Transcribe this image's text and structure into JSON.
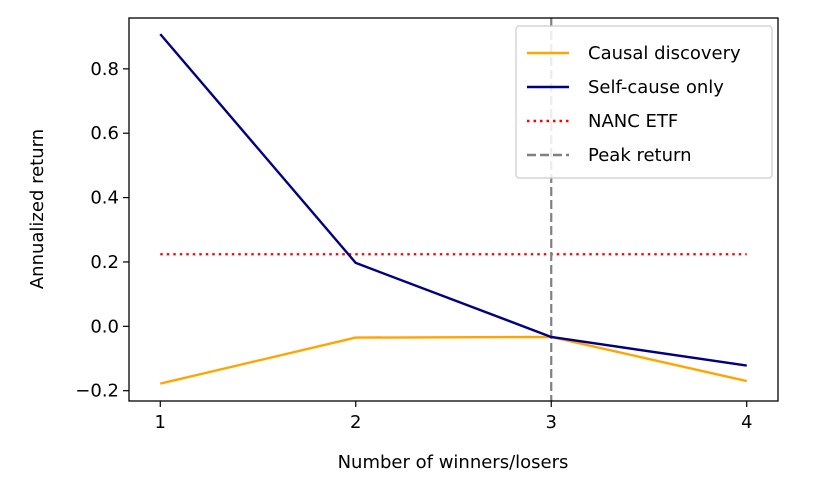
{
  "chart_data": {
    "type": "line",
    "title": "",
    "xlabel": "Number of winners/losers",
    "ylabel": "Annualized return",
    "x": [
      1,
      2,
      3,
      4
    ],
    "xticks": [
      1,
      2,
      3,
      4
    ],
    "xtick_labels": [
      "1",
      "2",
      "3",
      "4"
    ],
    "yticks": [
      -0.2,
      0.0,
      0.2,
      0.4,
      0.6,
      0.8
    ],
    "ytick_labels": [
      "−0.2",
      "0.0",
      "0.2",
      "0.4",
      "0.6",
      "0.8"
    ],
    "xlim": [
      0.84,
      4.16
    ],
    "ylim": [
      -0.232,
      0.958
    ],
    "grid": false,
    "legend_position": "top-right",
    "series": [
      {
        "name": "Causal discovery",
        "values": [
          -0.178,
          -0.035,
          -0.033,
          -0.17
        ],
        "color": "#ffa500",
        "style": "solid"
      },
      {
        "name": "Self-cause only",
        "values": [
          0.908,
          0.197,
          -0.033,
          -0.122
        ],
        "color": "#000080",
        "style": "solid"
      }
    ],
    "hlines": [
      {
        "name": "NANC ETF",
        "y": 0.224,
        "xmin": 1,
        "xmax": 4,
        "color": "#ff0000",
        "style": "dotted"
      }
    ],
    "vlines": [
      {
        "name": "Peak return",
        "x": 3,
        "color": "#808080",
        "style": "dashed"
      }
    ]
  }
}
